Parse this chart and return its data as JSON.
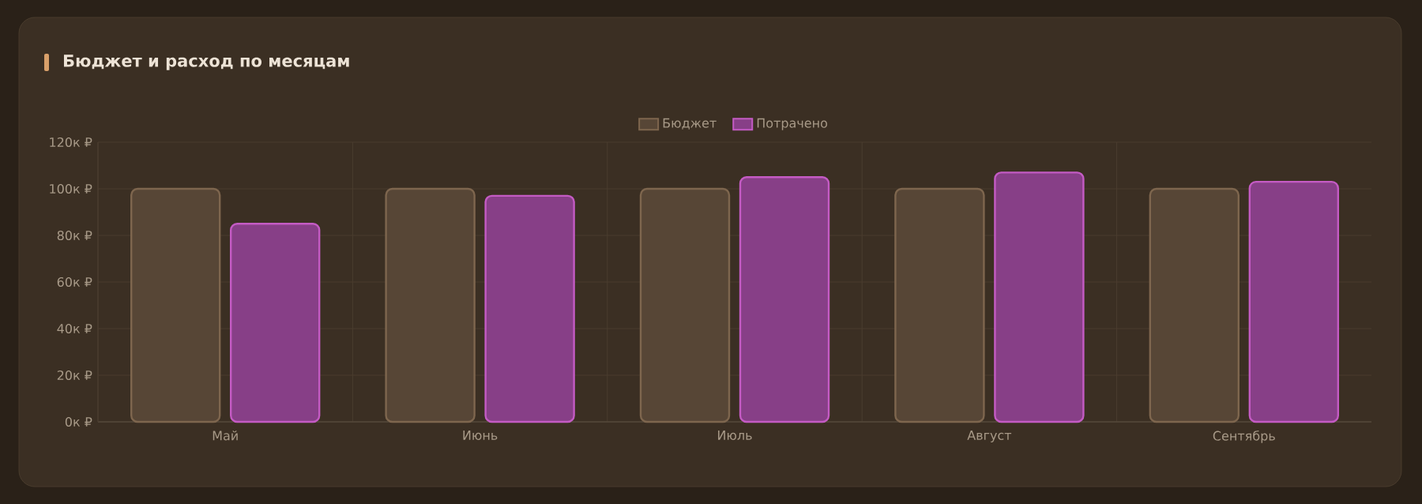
{
  "chart_data": {
    "type": "bar",
    "title": "Бюджет и расход по месяцам",
    "categories": [
      "Май",
      "Июнь",
      "Июль",
      "Август",
      "Сентябрь"
    ],
    "series": [
      {
        "name": "Бюджет",
        "color": "#574636",
        "values": [
          100,
          100,
          100,
          100,
          100
        ]
      },
      {
        "name": "Потрачено",
        "color": "#873f87",
        "values": [
          85,
          97,
          105,
          107,
          103
        ]
      }
    ],
    "ylim": [
      0,
      120
    ],
    "yticks": [
      {
        "value": 0,
        "label": "0к ₽"
      },
      {
        "value": 20,
        "label": "20к ₽"
      },
      {
        "value": 40,
        "label": "40к ₽"
      },
      {
        "value": 60,
        "label": "60к ₽"
      },
      {
        "value": 80,
        "label": "80к ₽"
      },
      {
        "value": 100,
        "label": "100к ₽"
      },
      {
        "value": 120,
        "label": "120к ₽"
      }
    ],
    "grid": true,
    "legend": "top"
  }
}
